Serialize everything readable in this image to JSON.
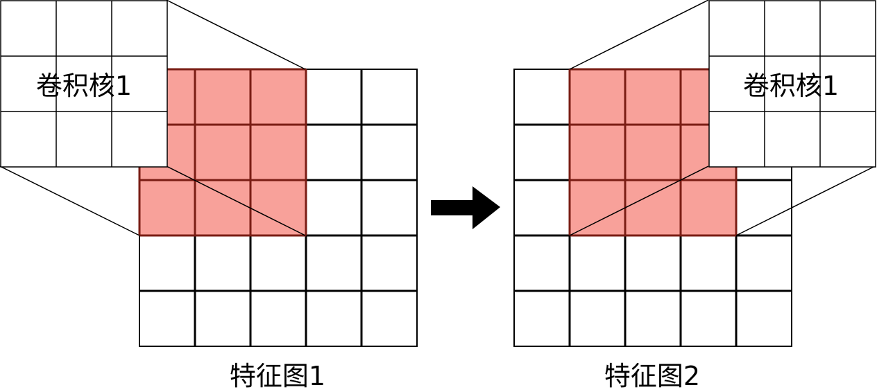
{
  "panels": [
    {
      "feature_map_label": "特征图1",
      "kernel_label": "卷积核1",
      "grid_size": 5,
      "kernel_size": 3,
      "highlight_row": 0,
      "highlight_col": 0
    },
    {
      "feature_map_label": "特征图2",
      "kernel_label": "卷积核1",
      "grid_size": 5,
      "kernel_size": 3,
      "highlight_row": 0,
      "highlight_col": 1
    }
  ],
  "colors": {
    "highlight": "#f8a19a",
    "highlight_border": "#7a1d14",
    "grid_line": "#000000",
    "background": "#ffffff",
    "arrow": "#000000"
  }
}
